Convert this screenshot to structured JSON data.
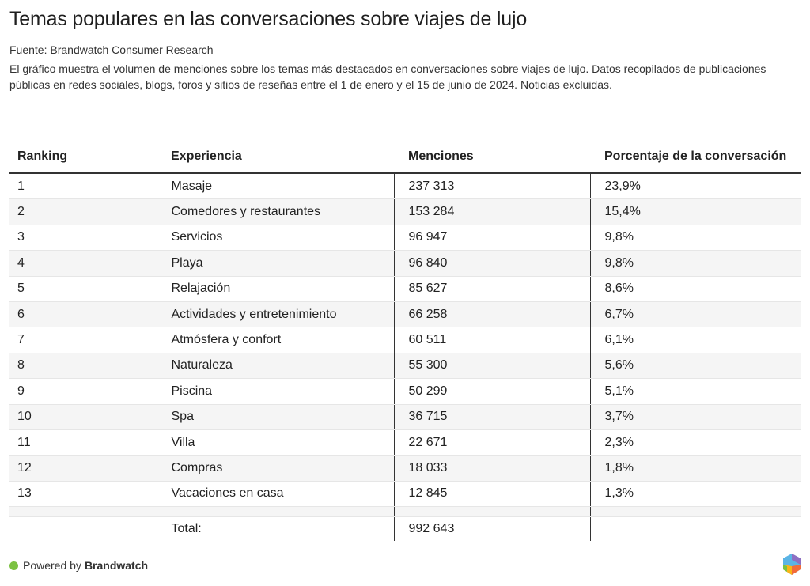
{
  "title": "Temas populares en las conversaciones sobre viajes de lujo",
  "source": "Fuente: Brandwatch Consumer Research",
  "description": "El gráfico muestra el volumen de menciones sobre los temas más destacados en conversaciones sobre viajes de lujo. Datos recopilados de publicaciones públicas en redes sociales, blogs, foros y sitios de reseñas entre el 1 de enero y el 15 de junio de 2024. Noticias excluidas.",
  "headers": [
    "Ranking",
    "Experiencia",
    "Menciones",
    "Porcentaje de la conversación"
  ],
  "rows": [
    [
      "1",
      "Masaje",
      "237 313",
      "23,9%"
    ],
    [
      "2",
      "Comedores y restaurantes",
      "153 284",
      "15,4%"
    ],
    [
      "3",
      "Servicios",
      "96 947",
      "9,8%"
    ],
    [
      "4",
      "Playa",
      "96 840",
      "9,8%"
    ],
    [
      "5",
      "Relajación",
      "85 627",
      "8,6%"
    ],
    [
      "6",
      "Actividades y entretenimiento",
      "66 258",
      "6,7%"
    ],
    [
      "7",
      "Atmósfera y confort",
      "60 511",
      "6,1%"
    ],
    [
      "8",
      "Naturaleza",
      "55 300",
      "5,6%"
    ],
    [
      "9",
      "Piscina",
      "50 299",
      "5,1%"
    ],
    [
      "10",
      "Spa",
      "36 715",
      "3,7%"
    ],
    [
      "11",
      "Villa",
      "22 671",
      "2,3%"
    ],
    [
      "12",
      "Compras",
      "18 033",
      "1,8%"
    ],
    [
      "13",
      "Vacaciones en casa",
      "12 845",
      "1,3%"
    ]
  ],
  "total": {
    "label": "Total:",
    "value": "992 643"
  },
  "footer": {
    "powered": "Powered by",
    "brand": "Brandwatch"
  }
}
